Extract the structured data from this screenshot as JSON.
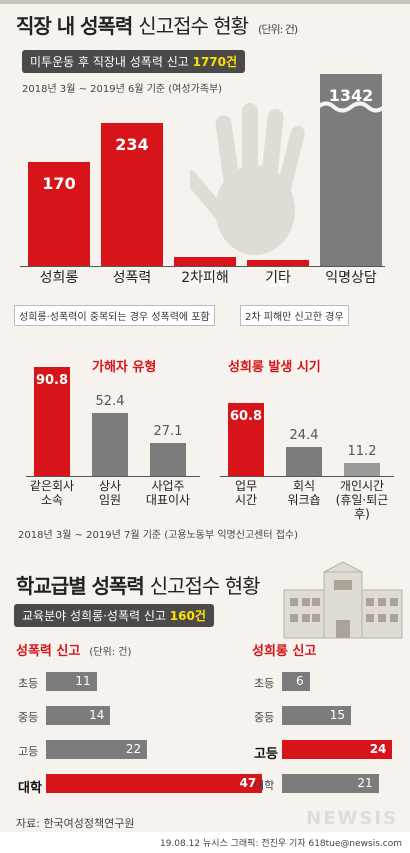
{
  "header": {
    "title_bold": "직장 내 성폭력",
    "title_light": "신고접수 현황",
    "unit": "(단위: 건)",
    "pill_text": "미투운동 후 직장내 성폭력 신고",
    "pill_highlight": "1770건",
    "period": "2018년 3월 ~ 2019년 6월 기준 (여성가족부)"
  },
  "notes": {
    "note1": "성희롱·성폭력이 중복되는 경우 성폭력에 포함",
    "note2": "2차 피해만 신고한 경우"
  },
  "mid": {
    "period": "2018년 3월 ~ 2019년 7월 기준 (고용노동부 익명신고센터 접수)"
  },
  "school": {
    "title_bold": "학교급별 성폭력",
    "title_light": "신고접수 현황",
    "pill_text": "교육분야 성희롱·성폭력 신고",
    "pill_highlight": "160건",
    "left_title": "성폭력 신고",
    "left_unit": "(단위: 건)",
    "right_title": "성희롱 신고"
  },
  "footer": {
    "source": "자료: 한국여성정책연구원",
    "credit": "19.08.12 뉴시스 그래픽: 전진우 기자 618tue@newsis.com",
    "watermark": "NEWSIS"
  },
  "chart_data": [
    {
      "type": "bar",
      "categories": [
        "성희롱",
        "성폭력",
        "2차피해",
        "기타",
        "익명상담"
      ],
      "values": [
        170,
        234,
        14,
        10,
        1342
      ],
      "colors": [
        "#d7141a",
        "#d7141a",
        "#d7141a",
        "#d7141a",
        "#7c7c7c"
      ],
      "title": "직장 내 성폭력 신고접수 현황"
    },
    {
      "type": "bar",
      "title": "가해자 유형",
      "categories": [
        "같은회사\n소속",
        "상사\n임원",
        "사업주\n대표이사"
      ],
      "values": [
        90.8,
        52.4,
        27.1
      ],
      "colors": [
        "#d7141a",
        "#7c7c7c",
        "#7c7c7c"
      ]
    },
    {
      "type": "bar",
      "title": "성희롱 발생 시기",
      "categories": [
        "업무\n시간",
        "회식\n워크숍",
        "개인시간\n(휴일·퇴근 후)"
      ],
      "values": [
        60.8,
        24.4,
        11.2
      ],
      "colors": [
        "#d7141a",
        "#7c7c7c",
        "#9a9a9a"
      ]
    },
    {
      "type": "bar",
      "orientation": "horizontal",
      "title": "성폭력 신고",
      "categories": [
        "초등",
        "중등",
        "고등",
        "대학"
      ],
      "values": [
        11,
        14,
        22,
        47
      ],
      "colors": [
        "#7c7c7c",
        "#7c7c7c",
        "#7c7c7c",
        "#d7141a"
      ]
    },
    {
      "type": "bar",
      "orientation": "horizontal",
      "title": "성희롱 신고",
      "categories": [
        "초등",
        "중등",
        "고등",
        "대학"
      ],
      "values": [
        6,
        15,
        24,
        21
      ],
      "colors": [
        "#7c7c7c",
        "#7c7c7c",
        "#d7141a",
        "#7c7c7c"
      ]
    }
  ]
}
